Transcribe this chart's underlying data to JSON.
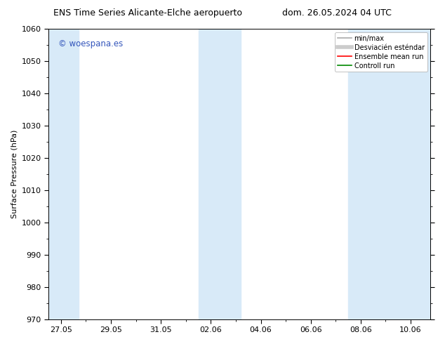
{
  "title_left": "ENS Time Series Alicante-Elche aeropuerto",
  "title_right": "dom. 26.05.2024 04 UTC",
  "ylabel": "Surface Pressure (hPa)",
  "ylim": [
    970,
    1060
  ],
  "yticks": [
    970,
    980,
    990,
    1000,
    1010,
    1020,
    1030,
    1040,
    1050,
    1060
  ],
  "xtick_labels": [
    "27.05",
    "29.05",
    "31.05",
    "02.06",
    "04.06",
    "06.06",
    "08.06",
    "10.06"
  ],
  "bg_color": "#ffffff",
  "plot_bg_color": "#ffffff",
  "shaded_band_color": "#d8eaf8",
  "watermark_text": "© woespana.es",
  "watermark_color": "#3355bb",
  "legend_minmax_color": "#aaaaaa",
  "legend_std_color": "#cccccc",
  "legend_mean_color": "#ff0000",
  "legend_ctrl_color": "#008800",
  "title_fontsize": 9,
  "ylabel_fontsize": 8,
  "tick_labelsize": 8,
  "legend_fontsize": 7
}
